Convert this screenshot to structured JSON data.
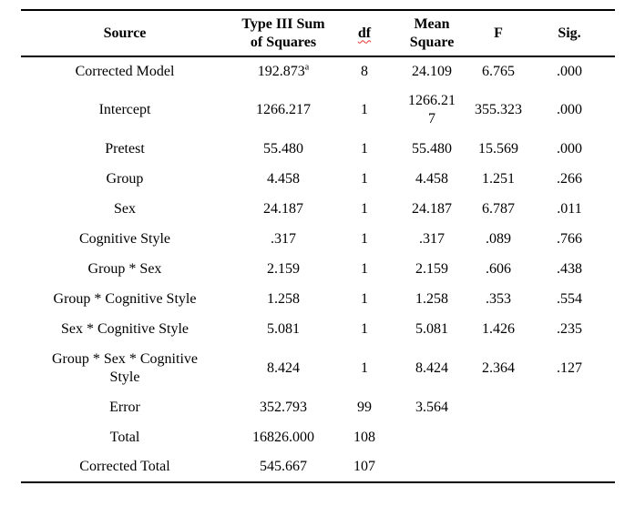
{
  "page": {
    "background": "#ffffff",
    "text_color": "#000000",
    "rule_color": "#000000",
    "spellcheck_color": "#e9322d"
  },
  "table": {
    "columns": [
      {
        "label": "Source"
      },
      {
        "label": "Type III Sum\nof Squares"
      },
      {
        "label": "df",
        "spellcheck": true
      },
      {
        "label": "Mean\nSquare"
      },
      {
        "label": "F"
      },
      {
        "label": "Sig."
      }
    ],
    "rows": [
      {
        "source": "Corrected Model",
        "type_iii_sum_of_squares": "192.873",
        "superscript": "a",
        "df": "8",
        "mean_square": "24.109",
        "f": "6.765",
        "sig": ".000"
      },
      {
        "source": "Intercept",
        "type_iii_sum_of_squares": "1266.217",
        "df": "1",
        "mean_square": "1266.21\n7",
        "f": "355.323",
        "sig": ".000",
        "tall": true
      },
      {
        "source": "Pretest",
        "type_iii_sum_of_squares": "55.480",
        "df": "1",
        "mean_square": "55.480",
        "f": "15.569",
        "sig": ".000"
      },
      {
        "source": "Group",
        "type_iii_sum_of_squares": "4.458",
        "df": "1",
        "mean_square": "4.458",
        "f": "1.251",
        "sig": ".266"
      },
      {
        "source": "Sex",
        "type_iii_sum_of_squares": "24.187",
        "df": "1",
        "mean_square": "24.187",
        "f": "6.787",
        "sig": ".011"
      },
      {
        "source": "Cognitive Style",
        "type_iii_sum_of_squares": ".317",
        "df": "1",
        "mean_square": ".317",
        "f": ".089",
        "sig": ".766"
      },
      {
        "source": "Group * Sex",
        "type_iii_sum_of_squares": "2.159",
        "df": "1",
        "mean_square": "2.159",
        "f": ".606",
        "sig": ".438"
      },
      {
        "source": "Group * Cognitive Style",
        "type_iii_sum_of_squares": "1.258",
        "df": "1",
        "mean_square": "1.258",
        "f": ".353",
        "sig": ".554"
      },
      {
        "source": "Sex * Cognitive Style",
        "type_iii_sum_of_squares": "5.081",
        "df": "1",
        "mean_square": "5.081",
        "f": "1.426",
        "sig": ".235"
      },
      {
        "source": "Group * Sex * Cognitive\nStyle",
        "type_iii_sum_of_squares": "8.424",
        "df": "1",
        "mean_square": "8.424",
        "f": "2.364",
        "sig": ".127",
        "tall": true
      },
      {
        "source": "Error",
        "type_iii_sum_of_squares": "352.793",
        "df": "99",
        "mean_square": "3.564",
        "f": "",
        "sig": ""
      },
      {
        "source": "Total",
        "type_iii_sum_of_squares": "16826.000",
        "df": "108",
        "mean_square": "",
        "f": "",
        "sig": ""
      },
      {
        "source": "Corrected Total",
        "type_iii_sum_of_squares": "545.667",
        "df": "107",
        "mean_square": "",
        "f": "",
        "sig": ""
      }
    ]
  }
}
